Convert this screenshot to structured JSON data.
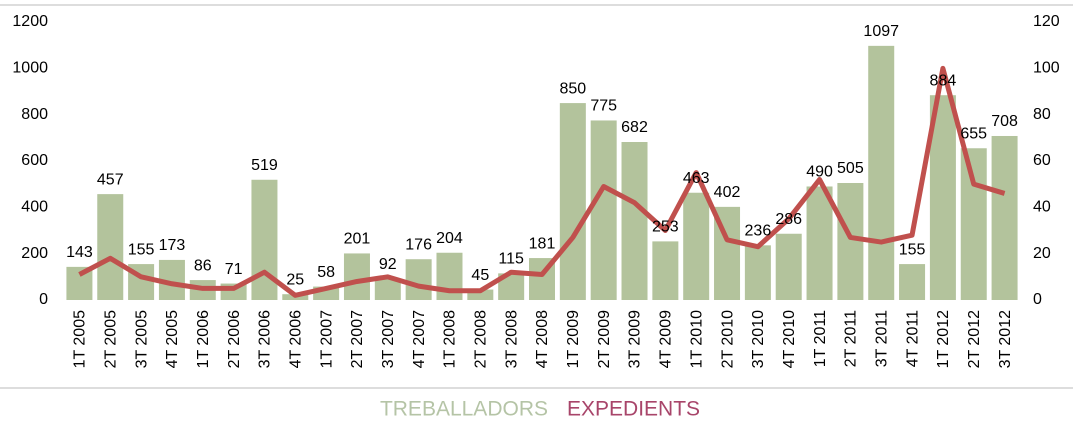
{
  "chart_data": {
    "type": "bar",
    "categories": [
      "1T 2005",
      "2T 2005",
      "3T 2005",
      "4T 2005",
      "1T 2006",
      "2T 2006",
      "3T 2006",
      "4T 2006",
      "1T 2007",
      "2T 2007",
      "3T 2007",
      "4T 2007",
      "1T 2008",
      "2T 2008",
      "3T 2008",
      "4T 2008",
      "1T 2009",
      "2T 2009",
      "3T 2009",
      "4T 2009",
      "1T 2010",
      "2T 2010",
      "3T 2010",
      "4T 2010",
      "1T 2011",
      "2T 2011",
      "3T 2011",
      "4T 2011",
      "1T 2012",
      "2T 2012",
      "3T 2012"
    ],
    "series": [
      {
        "name": "TREBALLADORS",
        "type": "bar",
        "color": "#b3c39c",
        "values": [
          143,
          457,
          155,
          173,
          86,
          71,
          519,
          25,
          58,
          201,
          92,
          176,
          204,
          45,
          115,
          181,
          850,
          775,
          682,
          253,
          463,
          402,
          236,
          286,
          490,
          505,
          1097,
          155,
          884,
          655,
          708
        ]
      },
      {
        "name": "EXPEDIENTS",
        "type": "line",
        "axis": "y2",
        "color": "#c0504d",
        "values": [
          11,
          18,
          10,
          7,
          5,
          5,
          12,
          2,
          5,
          8,
          10,
          6,
          4,
          4,
          12,
          11,
          27,
          49,
          42,
          30,
          55,
          26,
          23,
          35,
          52,
          27,
          25,
          28,
          100,
          50,
          46
        ]
      }
    ],
    "legend_colors": [
      "#b5c4a6",
      "#a8456a"
    ],
    "ylim": [
      0,
      1200
    ],
    "yticks": [
      0,
      200,
      400,
      600,
      800,
      1000,
      1200
    ],
    "y2lim": [
      0,
      120
    ],
    "y2ticks": [
      0,
      20,
      40,
      60,
      80,
      100,
      120
    ]
  }
}
